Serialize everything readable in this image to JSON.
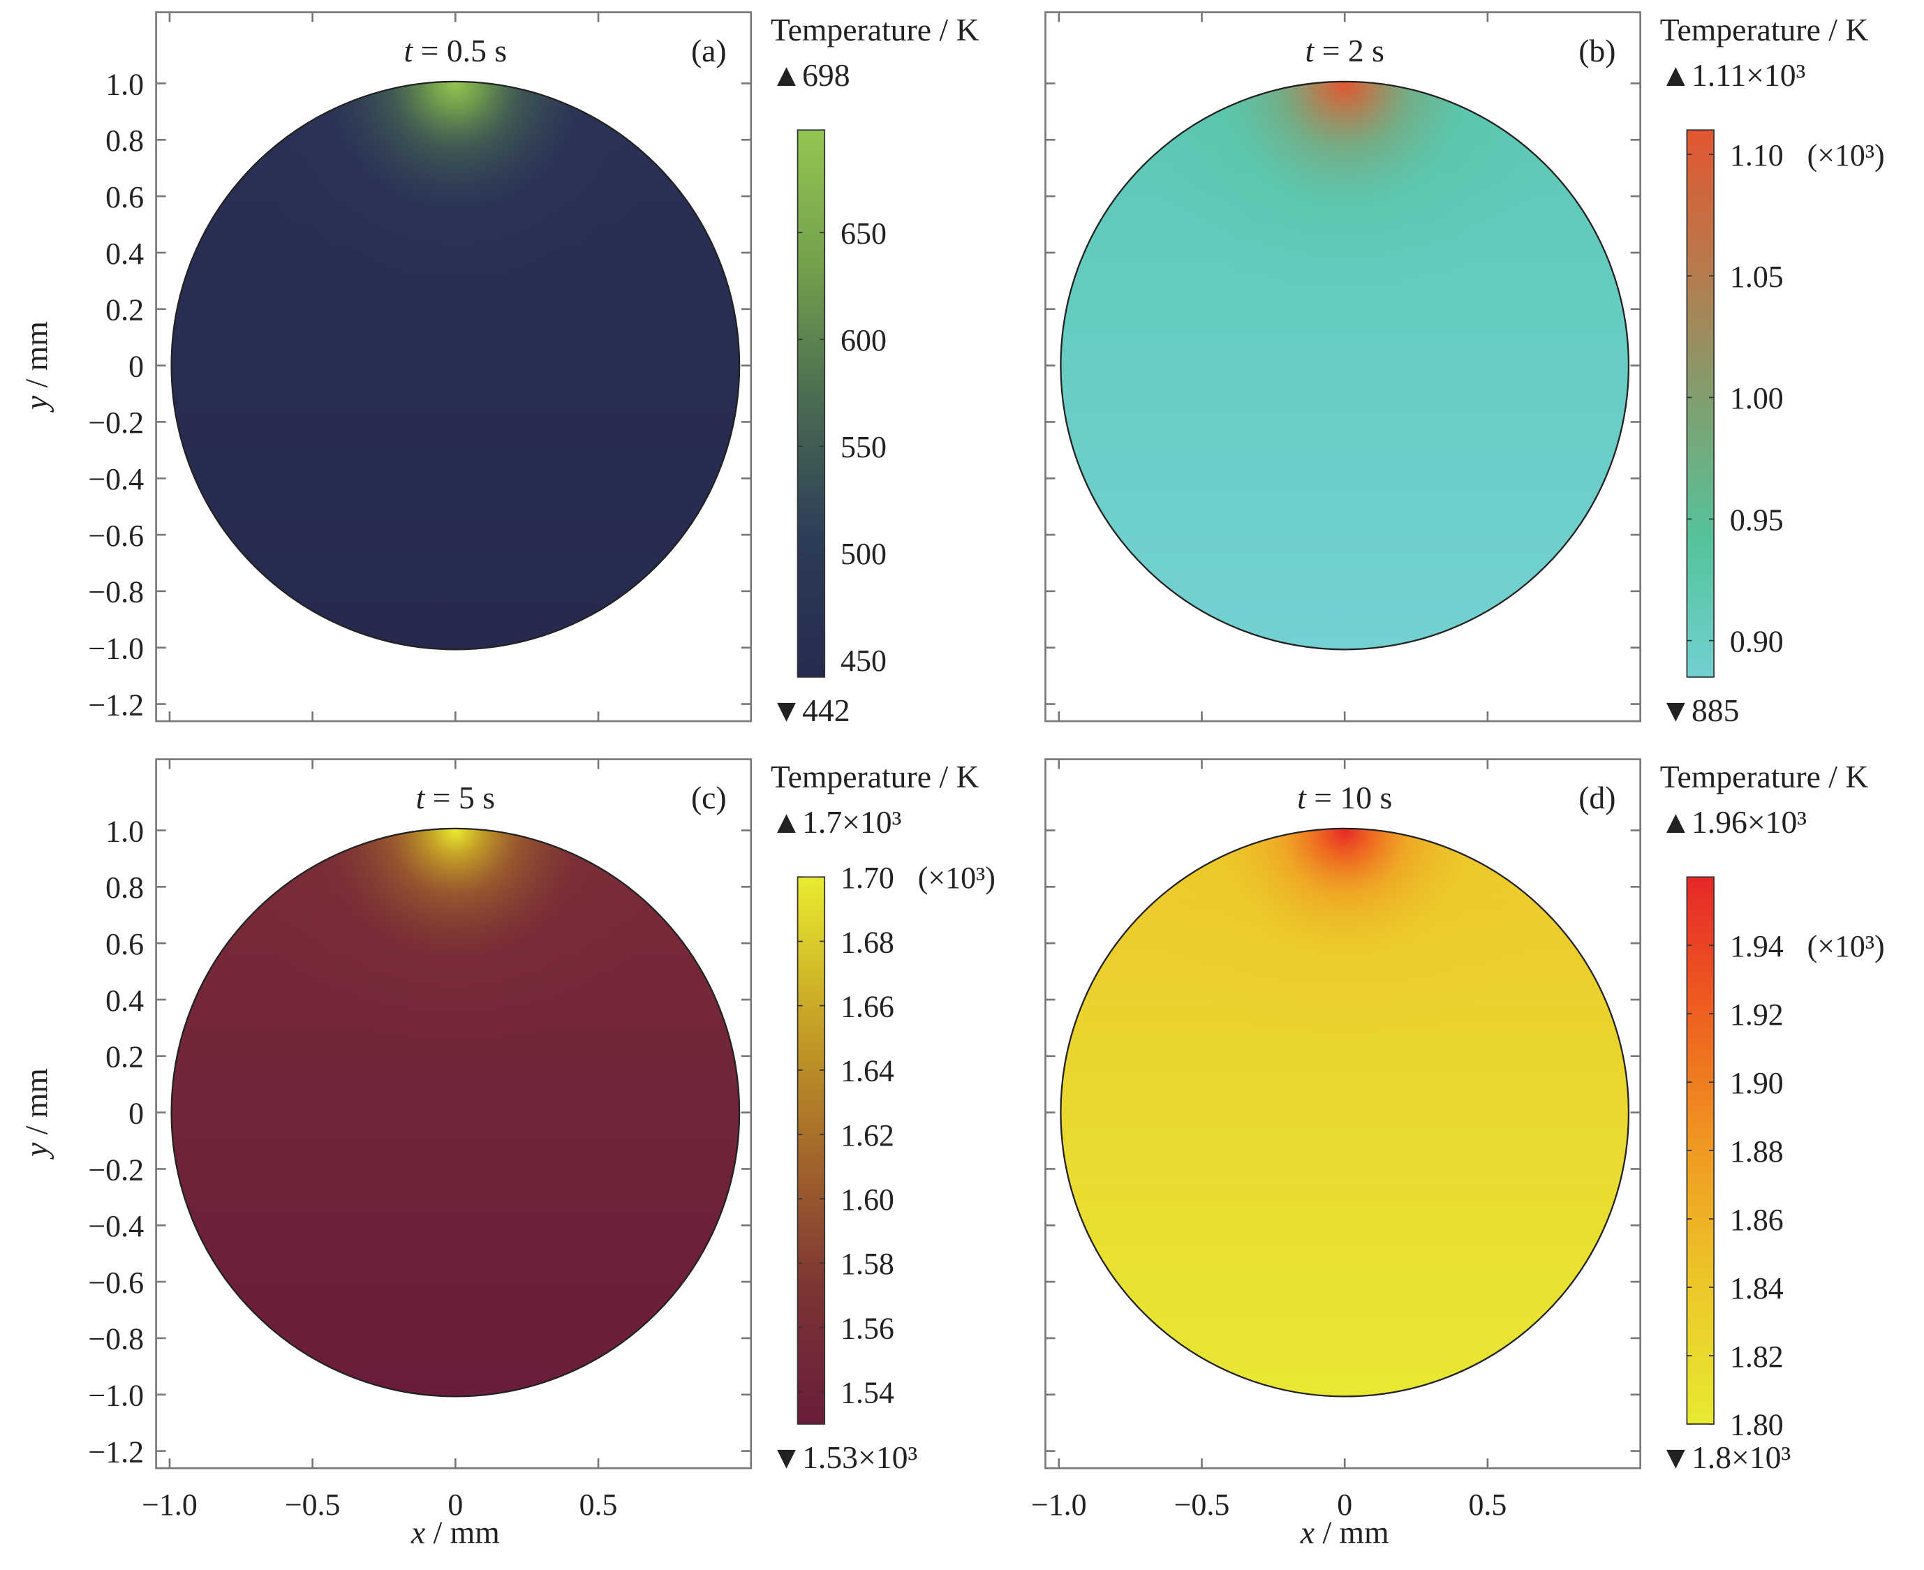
{
  "chart_data": {
    "type": "heatmap",
    "title": "",
    "xlabel": "x / mm",
    "ylabel": "y / mm",
    "xlim": [
      -1.05,
      1.03
    ],
    "ylim": [
      -1.25,
      1.25
    ],
    "x_ticks": [
      "-1.0",
      "-0.5",
      "0",
      "0.5"
    ],
    "x_tick_values": [
      -1.0,
      -0.5,
      0,
      0.5
    ],
    "y_ticks": [
      "1.0",
      "0.8",
      "0.6",
      "0.4",
      "0.2",
      "0",
      "-0.2",
      "-0.4",
      "-0.6",
      "-0.8",
      "-1.0",
      "-1.2"
    ],
    "y_tick_values": [
      1.0,
      0.8,
      0.6,
      0.4,
      0.2,
      0,
      -0.2,
      -0.4,
      -0.6,
      -0.8,
      -1.0,
      -1.2
    ],
    "domain": "circle of radius 1 mm centred at (0,0), heat source at (0,1)",
    "colorbar_title": "Temperature / K",
    "panels": [
      {
        "tag": "(a)",
        "t_var": "t",
        "t_text": " = 0.5 s",
        "max_label": "698",
        "min_label": "442",
        "min": 442,
        "max": 698,
        "cb_ticks": [
          "650",
          "600",
          "550",
          "500",
          "450"
        ],
        "cb_tick_values": [
          650,
          600,
          550,
          500,
          450
        ],
        "cb_scale": "",
        "colors": [
          "#252b50",
          "#2c3c58",
          "#4a6a52",
          "#73a04c",
          "#94c652"
        ],
        "bg": [
          "#2a3056",
          "#262a4f"
        ]
      },
      {
        "tag": "(b)",
        "t_var": "t",
        "t_text": " = 2 s",
        "max_label": "1.11×10³",
        "min_label": "885",
        "min": 885,
        "max": 1110,
        "cb_ticks": [
          "1.10",
          "1.05",
          "1.00",
          "0.95",
          "0.90"
        ],
        "cb_tick_values": [
          1100,
          1050,
          1000,
          950,
          900
        ],
        "cb_scale": "(×10³)",
        "colors": [
          "#72d0d0",
          "#55c39c",
          "#7fa070",
          "#b87a4c",
          "#e25630"
        ],
        "bg": [
          "#5cc8b4",
          "#74d1d2"
        ]
      },
      {
        "tag": "(c)",
        "t_var": "t",
        "t_text": " = 5 s",
        "max_label": "1.7×10³",
        "min_label": "1.53×10³",
        "min": 1530,
        "max": 1700,
        "cb_ticks": [
          "1.70",
          "1.68",
          "1.66",
          "1.64",
          "1.62",
          "1.60",
          "1.58",
          "1.56",
          "1.54"
        ],
        "cb_tick_values": [
          1700,
          1680,
          1660,
          1640,
          1620,
          1600,
          1580,
          1560,
          1540
        ],
        "cb_scale": "(×10³)",
        "colors": [
          "#6a1c3a",
          "#7e3434",
          "#a4682a",
          "#c8a626",
          "#eaec30"
        ],
        "bg": [
          "#7a2c38",
          "#6a1c3a"
        ]
      },
      {
        "tag": "(d)",
        "t_var": "t",
        "t_text": " = 10 s",
        "max_label": "1.96×10³",
        "min_label": "1.8×10³",
        "min": 1800,
        "max": 1960,
        "cb_ticks": [
          "1.94",
          "1.92",
          "1.90",
          "1.88",
          "1.86",
          "1.84",
          "1.82",
          "1.80"
        ],
        "cb_tick_values": [
          1940,
          1920,
          1900,
          1880,
          1860,
          1840,
          1820,
          1800
        ],
        "cb_scale": "(×10³)",
        "colors": [
          "#e8ea30",
          "#ecc82a",
          "#f09a22",
          "#ee6020",
          "#e62828"
        ],
        "bg": [
          "#ecc82c",
          "#e8e832"
        ]
      }
    ]
  }
}
